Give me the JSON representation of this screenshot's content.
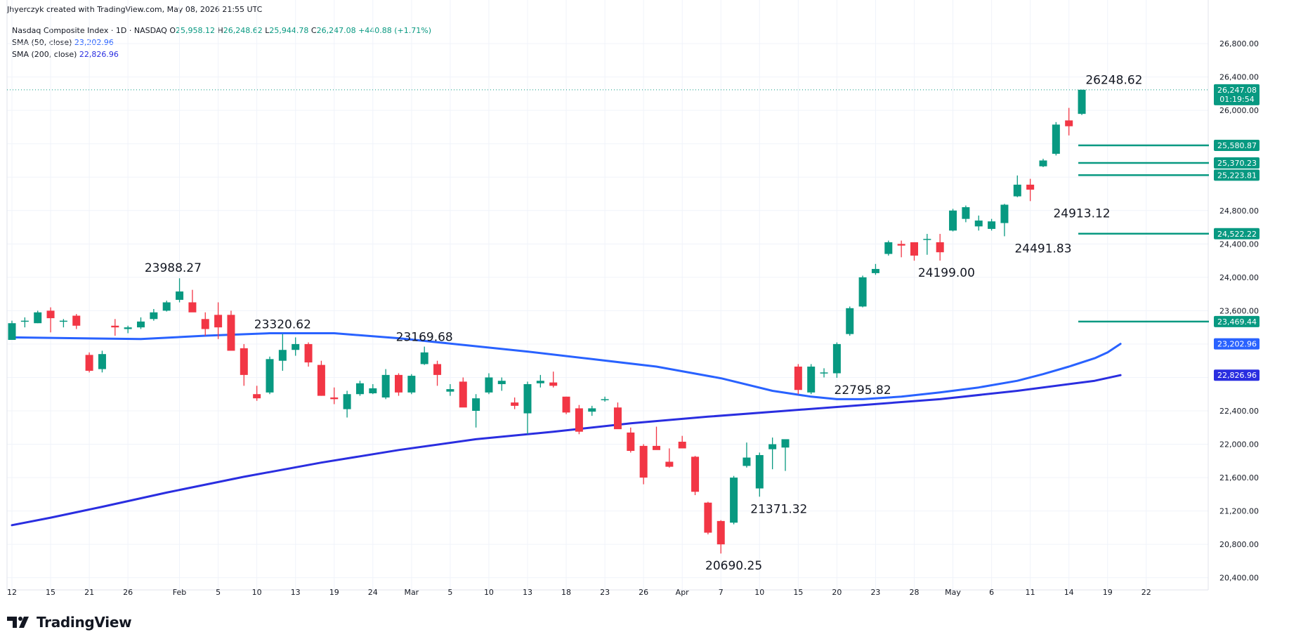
{
  "header": {
    "credit": "Jhyerczyk created with TradingView.com, May 08, 2026 21:55 UTC"
  },
  "legend": {
    "symbol": "Nasdaq Composite Index · 1D · NASDAQ",
    "open_label": "O",
    "open": "25,958.12",
    "high_label": "H",
    "high": "26,248.62",
    "low_label": "L",
    "low": "25,944.78",
    "close_label": "C",
    "close": "26,247.08",
    "change": "+440.88 (+1.71%)",
    "sma50_label": "SMA (50, close)",
    "sma50_value": "23,202.96",
    "sma200_label": "SMA (200, close)",
    "sma200_value": "22,826.96"
  },
  "brand": {
    "name": "TradingView"
  },
  "colors": {
    "up": "#089981",
    "down": "#f23645",
    "sma50": "#2962ff",
    "sma200": "#2a2ee0",
    "grid": "#f0f3fa",
    "axis_text": "#131722"
  },
  "chart_data": {
    "type": "candlestick",
    "y_axis": {
      "ticks": [
        20400,
        20800,
        21200,
        21600,
        22000,
        22400,
        22800,
        23200,
        23600,
        24000,
        24400,
        24800,
        25200,
        25600,
        26000,
        26400,
        26800
      ],
      "tick_labels": [
        "20,400.00",
        "20,800.00",
        "21,200.00",
        "21,600.00",
        "22,000.00",
        "22,400.00",
        "",
        "",
        "23,600.00",
        "24,000.00",
        "24,400.00",
        "24,800.00",
        "",
        "",
        "26,000.00",
        "26,400.00",
        "26,800.00"
      ]
    },
    "x_axis": {
      "labels": [
        "12",
        "15",
        "21",
        "26",
        "Feb",
        "5",
        "10",
        "13",
        "19",
        "24",
        "Mar",
        "5",
        "10",
        "13",
        "18",
        "23",
        "26",
        "Apr",
        "7",
        "10",
        "15",
        "20",
        "23",
        "28",
        "May",
        "6",
        "11",
        "14",
        "19",
        "22"
      ],
      "label_slots": [
        0,
        3,
        6,
        9,
        13,
        16,
        19,
        22,
        25,
        28,
        31,
        34,
        37,
        40,
        43,
        46,
        49,
        52,
        55,
        58,
        61,
        64,
        67,
        70,
        73,
        76,
        79,
        82,
        85,
        88
      ]
    },
    "candles": [
      {
        "o": 23250,
        "h": 23480,
        "l": 23250,
        "c": 23450
      },
      {
        "o": 23470,
        "h": 23520,
        "l": 23400,
        "c": 23480
      },
      {
        "o": 23450,
        "h": 23600,
        "l": 23450,
        "c": 23580
      },
      {
        "o": 23600,
        "h": 23640,
        "l": 23340,
        "c": 23510
      },
      {
        "o": 23480,
        "h": 23500,
        "l": 23400,
        "c": 23480
      },
      {
        "o": 23540,
        "h": 23560,
        "l": 23380,
        "c": 23420
      },
      {
        "o": 23070,
        "h": 23100,
        "l": 22860,
        "c": 22880
      },
      {
        "o": 22900,
        "h": 23120,
        "l": 22860,
        "c": 23080
      },
      {
        "o": 23420,
        "h": 23500,
        "l": 23300,
        "c": 23400
      },
      {
        "o": 23380,
        "h": 23420,
        "l": 23330,
        "c": 23400
      },
      {
        "o": 23400,
        "h": 23520,
        "l": 23380,
        "c": 23470
      },
      {
        "o": 23500,
        "h": 23620,
        "l": 23480,
        "c": 23580
      },
      {
        "o": 23600,
        "h": 23720,
        "l": 23590,
        "c": 23700
      },
      {
        "o": 23730,
        "h": 23988.27,
        "l": 23700,
        "c": 23830
      },
      {
        "o": 23700,
        "h": 23850,
        "l": 23600,
        "c": 23580
      },
      {
        "o": 23500,
        "h": 23580,
        "l": 23300,
        "c": 23380
      },
      {
        "o": 23550,
        "h": 23700,
        "l": 23260,
        "c": 23400
      },
      {
        "o": 23550,
        "h": 23600,
        "l": 23150,
        "c": 23120
      },
      {
        "o": 23150,
        "h": 23200,
        "l": 22700,
        "c": 22830
      },
      {
        "o": 22600,
        "h": 22700,
        "l": 22520,
        "c": 22550
      },
      {
        "o": 22620,
        "h": 23050,
        "l": 22600,
        "c": 23020
      },
      {
        "o": 23000,
        "h": 23320.62,
        "l": 22880,
        "c": 23130
      },
      {
        "o": 23130,
        "h": 23280,
        "l": 23060,
        "c": 23200
      },
      {
        "o": 23200,
        "h": 23220,
        "l": 22930,
        "c": 22980
      },
      {
        "o": 22950,
        "h": 23000,
        "l": 22580,
        "c": 22580
      },
      {
        "o": 22560,
        "h": 22680,
        "l": 22480,
        "c": 22540
      },
      {
        "o": 22420,
        "h": 22640,
        "l": 22320,
        "c": 22600
      },
      {
        "o": 22600,
        "h": 22760,
        "l": 22580,
        "c": 22730
      },
      {
        "o": 22610,
        "h": 22720,
        "l": 22600,
        "c": 22670
      },
      {
        "o": 22560,
        "h": 22900,
        "l": 22540,
        "c": 22830
      },
      {
        "o": 22830,
        "h": 22850,
        "l": 22580,
        "c": 22620
      },
      {
        "o": 22620,
        "h": 22840,
        "l": 22600,
        "c": 22820
      },
      {
        "o": 22960,
        "h": 23169.68,
        "l": 22950,
        "c": 23100
      },
      {
        "o": 22960,
        "h": 23000,
        "l": 22700,
        "c": 22830
      },
      {
        "o": 22630,
        "h": 22720,
        "l": 22580,
        "c": 22660
      },
      {
        "o": 22750,
        "h": 22800,
        "l": 22450,
        "c": 22440
      },
      {
        "o": 22400,
        "h": 22600,
        "l": 22200,
        "c": 22550
      },
      {
        "o": 22620,
        "h": 22850,
        "l": 22600,
        "c": 22800
      },
      {
        "o": 22720,
        "h": 22800,
        "l": 22640,
        "c": 22760
      },
      {
        "o": 22500,
        "h": 22560,
        "l": 22420,
        "c": 22460
      },
      {
        "o": 22370,
        "h": 22750,
        "l": 22120,
        "c": 22720
      },
      {
        "o": 22730,
        "h": 22830,
        "l": 22680,
        "c": 22760
      },
      {
        "o": 22740,
        "h": 22870,
        "l": 22680,
        "c": 22700
      },
      {
        "o": 22570,
        "h": 22570,
        "l": 22360,
        "c": 22380
      },
      {
        "o": 22430,
        "h": 22470,
        "l": 22120,
        "c": 22150
      },
      {
        "o": 22390,
        "h": 22460,
        "l": 22340,
        "c": 22430
      },
      {
        "o": 22530,
        "h": 22570,
        "l": 22510,
        "c": 22540
      },
      {
        "o": 22440,
        "h": 22500,
        "l": 22190,
        "c": 22180
      },
      {
        "o": 22140,
        "h": 22200,
        "l": 21900,
        "c": 21920
      },
      {
        "o": 21980,
        "h": 22000,
        "l": 21520,
        "c": 21600
      },
      {
        "o": 21980,
        "h": 22210,
        "l": 21940,
        "c": 21930
      },
      {
        "o": 21790,
        "h": 21950,
        "l": 21720,
        "c": 21730
      },
      {
        "o": 22030,
        "h": 22100,
        "l": 21960,
        "c": 21950
      },
      {
        "o": 21850,
        "h": 21860,
        "l": 21390,
        "c": 21430
      },
      {
        "o": 21300,
        "h": 21310,
        "l": 20920,
        "c": 20940
      },
      {
        "o": 21080,
        "h": 21090,
        "l": 20690.25,
        "c": 20800
      },
      {
        "o": 21060,
        "h": 21620,
        "l": 21040,
        "c": 21600
      },
      {
        "o": 21740,
        "h": 22020,
        "l": 21720,
        "c": 21840
      },
      {
        "o": 21470,
        "h": 21900,
        "l": 21371.32,
        "c": 21870
      },
      {
        "o": 21940,
        "h": 22080,
        "l": 21700,
        "c": 22000
      },
      {
        "o": 21960,
        "h": 22050,
        "l": 21680,
        "c": 22060
      },
      {
        "o": 22930,
        "h": 22960,
        "l": 22600,
        "c": 22650
      },
      {
        "o": 22620,
        "h": 22960,
        "l": 22600,
        "c": 22930
      },
      {
        "o": 22850,
        "h": 22910,
        "l": 22800,
        "c": 22860
      },
      {
        "o": 22850,
        "h": 23220,
        "l": 22795.82,
        "c": 23200
      },
      {
        "o": 23320,
        "h": 23650,
        "l": 23300,
        "c": 23630
      },
      {
        "o": 23650,
        "h": 24020,
        "l": 23640,
        "c": 24000
      },
      {
        "o": 24050,
        "h": 24160,
        "l": 24030,
        "c": 24100
      },
      {
        "o": 24280,
        "h": 24440,
        "l": 24260,
        "c": 24420
      },
      {
        "o": 24400,
        "h": 24440,
        "l": 24240,
        "c": 24380
      },
      {
        "o": 24420,
        "h": 24420,
        "l": 24199,
        "c": 24260
      },
      {
        "o": 24460,
        "h": 24520,
        "l": 24270,
        "c": 24460
      },
      {
        "o": 24420,
        "h": 24520,
        "l": 24200,
        "c": 24300
      },
      {
        "o": 24560,
        "h": 24820,
        "l": 24550,
        "c": 24800
      },
      {
        "o": 24700,
        "h": 24860,
        "l": 24660,
        "c": 24840
      },
      {
        "o": 24610,
        "h": 24740,
        "l": 24560,
        "c": 24680
      },
      {
        "o": 24580,
        "h": 24700,
        "l": 24560,
        "c": 24670
      },
      {
        "o": 24650,
        "h": 24880,
        "l": 24491.83,
        "c": 24870
      },
      {
        "o": 24970,
        "h": 25220,
        "l": 24960,
        "c": 25110
      },
      {
        "o": 25110,
        "h": 25180,
        "l": 24913.12,
        "c": 25050
      },
      {
        "o": 25330,
        "h": 25420,
        "l": 25320,
        "c": 25400
      },
      {
        "o": 25480,
        "h": 25860,
        "l": 25460,
        "c": 25830
      },
      {
        "o": 25880,
        "h": 26030,
        "l": 25700,
        "c": 25810
      },
      {
        "o": 25958.12,
        "h": 26248.62,
        "l": 25944.78,
        "c": 26247.08
      }
    ],
    "sma50": [
      [
        0,
        23280
      ],
      [
        5,
        23270
      ],
      [
        10,
        23260
      ],
      [
        15,
        23300
      ],
      [
        20,
        23330
      ],
      [
        25,
        23330
      ],
      [
        30,
        23270
      ],
      [
        35,
        23190
      ],
      [
        40,
        23110
      ],
      [
        45,
        23020
      ],
      [
        50,
        22930
      ],
      [
        55,
        22790
      ],
      [
        59,
        22640
      ],
      [
        62,
        22570
      ],
      [
        64,
        22540
      ],
      [
        66,
        22540
      ],
      [
        69,
        22570
      ],
      [
        72,
        22620
      ],
      [
        75,
        22680
      ],
      [
        78,
        22760
      ],
      [
        80,
        22840
      ],
      [
        82,
        22930
      ],
      [
        84,
        23030
      ],
      [
        85,
        23100
      ],
      [
        86,
        23202.96
      ]
    ],
    "sma200": [
      [
        0,
        21030
      ],
      [
        3,
        21120
      ],
      [
        7,
        21250
      ],
      [
        12,
        21420
      ],
      [
        18,
        21610
      ],
      [
        24,
        21780
      ],
      [
        30,
        21930
      ],
      [
        36,
        22060
      ],
      [
        42,
        22150
      ],
      [
        48,
        22250
      ],
      [
        54,
        22330
      ],
      [
        60,
        22400
      ],
      [
        66,
        22470
      ],
      [
        72,
        22540
      ],
      [
        78,
        22640
      ],
      [
        84,
        22760
      ],
      [
        86,
        22826.96
      ]
    ],
    "annotations": [
      {
        "text": "23988.27",
        "slot": 12.5,
        "price": 24000,
        "anchor": "above"
      },
      {
        "text": "23320.62",
        "slot": 21,
        "price": 23320,
        "anchor": "above"
      },
      {
        "text": "23169.68",
        "slot": 32,
        "price": 23169,
        "anchor": "above"
      },
      {
        "text": "20690.25",
        "slot": 56,
        "price": 20690,
        "anchor": "below"
      },
      {
        "text": "21371.32",
        "slot": 59.5,
        "price": 21371,
        "anchor": "below"
      },
      {
        "text": "22795.82",
        "slot": 66,
        "price": 22795,
        "anchor": "below"
      },
      {
        "text": "24199.00",
        "slot": 72.5,
        "price": 24199,
        "anchor": "below"
      },
      {
        "text": "24491.83",
        "slot": 80,
        "price": 24491,
        "anchor": "below"
      },
      {
        "text": "24913.12",
        "slot": 83,
        "price": 24913,
        "anchor": "below"
      },
      {
        "text": "26248.62",
        "slot": 85.5,
        "price": 26248,
        "anchor": "above"
      }
    ],
    "h_lines": [
      {
        "price": 25580.87,
        "label": "25,580.87",
        "color": "#089981"
      },
      {
        "price": 25370.23,
        "label": "25,370.23",
        "color": "#089981"
      },
      {
        "price": 25223.81,
        "label": "25,223.81",
        "color": "#089981"
      },
      {
        "price": 24522.22,
        "label": "24,522.22",
        "color": "#089981"
      },
      {
        "price": 23469.44,
        "label": "23,469.44",
        "color": "#089981"
      }
    ],
    "last_price": {
      "price": 26247.08,
      "label": "26,247.08",
      "countdown": "01:19:54"
    },
    "sma_labels": [
      {
        "price": 23202.96,
        "label": "23,202.96",
        "color": "#2962ff"
      },
      {
        "price": 22826.96,
        "label": "22,826.96",
        "color": "#2a2ee0"
      }
    ]
  }
}
